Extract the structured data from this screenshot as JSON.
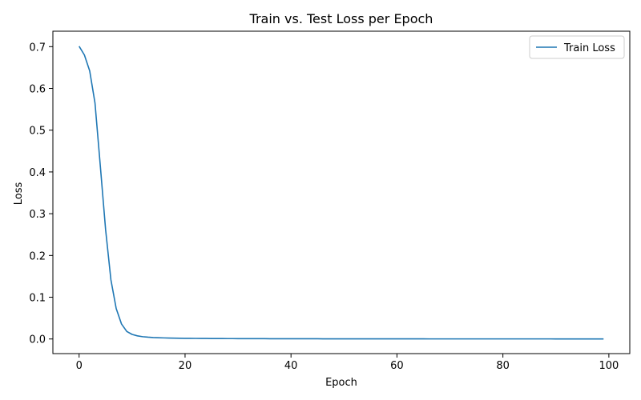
{
  "chart_data": {
    "type": "line",
    "title": "Train vs. Test Loss per Epoch",
    "xlabel": "Epoch",
    "ylabel": "Loss",
    "xlim": [
      -4.95,
      103.95
    ],
    "ylim": [
      -0.035,
      0.737
    ],
    "x_ticks": [
      0,
      20,
      40,
      60,
      80,
      100
    ],
    "y_ticks": [
      0.0,
      0.1,
      0.2,
      0.3,
      0.4,
      0.5,
      0.6,
      0.7
    ],
    "x_tick_labels": [
      "0",
      "20",
      "40",
      "60",
      "80",
      "100"
    ],
    "y_tick_labels": [
      "0.0",
      "0.1",
      "0.2",
      "0.3",
      "0.4",
      "0.5",
      "0.6",
      "0.7"
    ],
    "grid": false,
    "legend_position": "upper right",
    "series": [
      {
        "name": "Train Loss",
        "color": "#1f77b4",
        "x": [
          0,
          1,
          2,
          3,
          4,
          5,
          6,
          7,
          8,
          9,
          10,
          11,
          12,
          13,
          14,
          15,
          16,
          17,
          18,
          19,
          20,
          21,
          22,
          23,
          24,
          25,
          26,
          27,
          28,
          29,
          30,
          31,
          32,
          33,
          34,
          35,
          36,
          37,
          38,
          39,
          40,
          41,
          42,
          43,
          44,
          45,
          46,
          47,
          48,
          49,
          50,
          51,
          52,
          53,
          54,
          55,
          56,
          57,
          58,
          59,
          60,
          61,
          62,
          63,
          64,
          65,
          66,
          67,
          68,
          69,
          70,
          71,
          72,
          73,
          74,
          75,
          76,
          77,
          78,
          79,
          80,
          81,
          82,
          83,
          84,
          85,
          86,
          87,
          88,
          89,
          90,
          91,
          92,
          93,
          94,
          95,
          96,
          97,
          98,
          99
        ],
        "y": [
          0.701,
          0.68,
          0.642,
          0.565,
          0.415,
          0.262,
          0.142,
          0.073,
          0.036,
          0.018,
          0.011,
          0.0075,
          0.0055,
          0.0043,
          0.0035,
          0.003,
          0.0026,
          0.0023,
          0.002,
          0.0018,
          0.0016,
          0.0015,
          0.0014,
          0.0013,
          0.0012,
          0.0011,
          0.001,
          0.001,
          0.0009,
          0.0009,
          0.0008,
          0.0008,
          0.0008,
          0.0007,
          0.0007,
          0.0007,
          0.0006,
          0.0006,
          0.0006,
          0.0006,
          0.0005,
          0.0005,
          0.0005,
          0.0005,
          0.0005,
          0.0005,
          0.0004,
          0.0004,
          0.0004,
          0.0004,
          0.0004,
          0.0004,
          0.0004,
          0.0004,
          0.0003,
          0.0003,
          0.0003,
          0.0003,
          0.0003,
          0.0003,
          0.0003,
          0.0003,
          0.0003,
          0.0003,
          0.0003,
          0.0003,
          0.0002,
          0.0002,
          0.0002,
          0.0002,
          0.0002,
          0.0002,
          0.0002,
          0.0002,
          0.0002,
          0.0002,
          0.0002,
          0.0002,
          0.0002,
          0.0002,
          0.0002,
          0.0002,
          0.0002,
          0.0002,
          0.0002,
          0.0002,
          0.0002,
          0.0002,
          0.0002,
          0.0002,
          0.0001,
          0.0001,
          0.0001,
          0.0001,
          0.0001,
          0.0001,
          0.0001,
          0.0001,
          0.0001,
          0.0001
        ]
      }
    ]
  }
}
